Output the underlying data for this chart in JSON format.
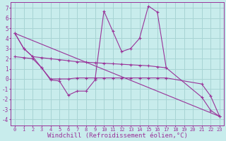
{
  "background_color": "#c8ecec",
  "grid_color": "#a8d4d4",
  "line_color": "#993399",
  "marker_color": "#993399",
  "xlabel": "Windchill (Refroidissement éolien,°C)",
  "xlabel_color": "#993399",
  "xlabel_fontsize": 6.5,
  "ylabel_ticks": [
    -4,
    -3,
    -2,
    -1,
    0,
    1,
    2,
    3,
    4,
    5,
    6,
    7
  ],
  "xlim": [
    -0.5,
    23.5
  ],
  "ylim": [
    -4.6,
    7.6
  ],
  "xticks": [
    0,
    1,
    2,
    3,
    4,
    5,
    6,
    7,
    8,
    9,
    10,
    11,
    12,
    13,
    14,
    15,
    16,
    17,
    18,
    19,
    20,
    21,
    22,
    23
  ],
  "line1_x": [
    0,
    1,
    2,
    3,
    4,
    5,
    6,
    7,
    8,
    9,
    10,
    11,
    12,
    13,
    14,
    15,
    16,
    17,
    21,
    22,
    23
  ],
  "line1_y": [
    4.5,
    3.0,
    2.2,
    1.1,
    -0.1,
    -0.2,
    -1.6,
    -1.2,
    -1.2,
    -0.1,
    6.7,
    4.7,
    2.7,
    3.0,
    4.0,
    7.2,
    6.6,
    1.1,
    -1.8,
    -3.1,
    -3.7
  ],
  "line2_x": [
    0,
    1,
    2,
    3,
    4,
    5,
    6,
    7,
    8,
    9,
    10,
    11,
    12,
    13,
    14,
    15,
    16,
    17
  ],
  "line2_y": [
    4.5,
    3.0,
    2.2,
    2.1,
    2.0,
    1.9,
    1.8,
    1.7,
    1.65,
    1.6,
    1.55,
    1.5,
    1.45,
    1.4,
    1.35,
    1.3,
    1.2,
    1.1
  ],
  "line3_x": [
    0,
    23
  ],
  "line3_y": [
    4.5,
    -3.7
  ],
  "line4_x": [
    0,
    1,
    2,
    3,
    4,
    5,
    6,
    7,
    8,
    9,
    10,
    11,
    12,
    13,
    14,
    15,
    16,
    17,
    21,
    22,
    23
  ],
  "line4_y": [
    2.2,
    2.1,
    2.0,
    1.1,
    0.0,
    0.0,
    -0.0,
    0.1,
    0.1,
    0.1,
    0.1,
    0.1,
    0.1,
    0.1,
    0.1,
    0.1,
    0.1,
    0.1,
    -0.5,
    -1.7,
    -3.7
  ]
}
